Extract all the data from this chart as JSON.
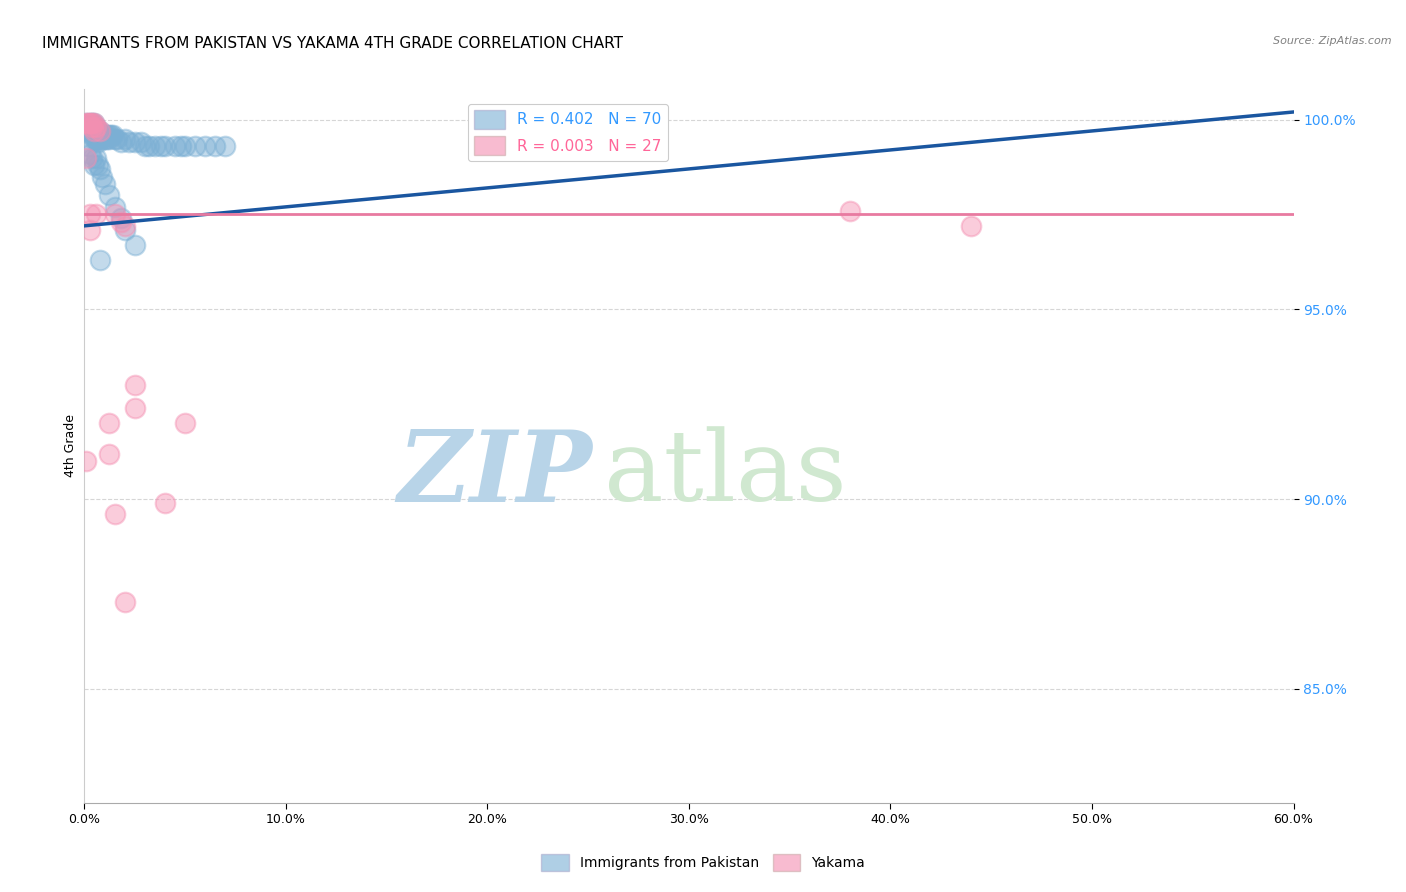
{
  "title": "IMMIGRANTS FROM PAKISTAN VS YAKAMA 4TH GRADE CORRELATION CHART",
  "source": "Source: ZipAtlas.com",
  "ylabel": "4th Grade",
  "xlim": [
    0.0,
    0.6
  ],
  "ylim": [
    0.82,
    1.008
  ],
  "xtick_labels": [
    "0.0%",
    "10.0%",
    "20.0%",
    "30.0%",
    "40.0%",
    "50.0%",
    "60.0%"
  ],
  "xtick_values": [
    0.0,
    0.1,
    0.2,
    0.3,
    0.4,
    0.5,
    0.6
  ],
  "ytick_labels": [
    "85.0%",
    "90.0%",
    "95.0%",
    "100.0%"
  ],
  "ytick_values": [
    0.85,
    0.9,
    0.95,
    1.0
  ],
  "watermark_zip": "ZIP",
  "watermark_atlas": "atlas",
  "blue_color": "#7bafd4",
  "pink_color": "#f48fb1",
  "blue_line_color": "#1a56a0",
  "pink_line_color": "#e87aa0",
  "scatter_blue": [
    [
      0.001,
      0.999
    ],
    [
      0.002,
      0.998
    ],
    [
      0.002,
      0.997
    ],
    [
      0.003,
      0.999
    ],
    [
      0.003,
      0.998
    ],
    [
      0.003,
      0.997
    ],
    [
      0.004,
      0.999
    ],
    [
      0.004,
      0.998
    ],
    [
      0.004,
      0.997
    ],
    [
      0.004,
      0.996
    ],
    [
      0.005,
      0.999
    ],
    [
      0.005,
      0.998
    ],
    [
      0.005,
      0.997
    ],
    [
      0.005,
      0.996
    ],
    [
      0.005,
      0.995
    ],
    [
      0.006,
      0.998
    ],
    [
      0.006,
      0.997
    ],
    [
      0.006,
      0.996
    ],
    [
      0.006,
      0.995
    ],
    [
      0.007,
      0.997
    ],
    [
      0.007,
      0.996
    ],
    [
      0.007,
      0.995
    ],
    [
      0.007,
      0.994
    ],
    [
      0.008,
      0.997
    ],
    [
      0.008,
      0.996
    ],
    [
      0.008,
      0.995
    ],
    [
      0.009,
      0.996
    ],
    [
      0.009,
      0.995
    ],
    [
      0.01,
      0.996
    ],
    [
      0.01,
      0.995
    ],
    [
      0.011,
      0.996
    ],
    [
      0.011,
      0.995
    ],
    [
      0.012,
      0.996
    ],
    [
      0.012,
      0.995
    ],
    [
      0.013,
      0.996
    ],
    [
      0.014,
      0.996
    ],
    [
      0.015,
      0.995
    ],
    [
      0.016,
      0.995
    ],
    [
      0.018,
      0.994
    ],
    [
      0.02,
      0.995
    ],
    [
      0.022,
      0.994
    ],
    [
      0.025,
      0.994
    ],
    [
      0.028,
      0.994
    ],
    [
      0.03,
      0.993
    ],
    [
      0.032,
      0.993
    ],
    [
      0.035,
      0.993
    ],
    [
      0.038,
      0.993
    ],
    [
      0.04,
      0.993
    ],
    [
      0.045,
      0.993
    ],
    [
      0.048,
      0.993
    ],
    [
      0.05,
      0.993
    ],
    [
      0.055,
      0.993
    ],
    [
      0.06,
      0.993
    ],
    [
      0.065,
      0.993
    ],
    [
      0.07,
      0.993
    ],
    [
      0.002,
      0.993
    ],
    [
      0.003,
      0.991
    ],
    [
      0.004,
      0.99
    ],
    [
      0.005,
      0.988
    ],
    [
      0.006,
      0.99
    ],
    [
      0.007,
      0.988
    ],
    [
      0.008,
      0.987
    ],
    [
      0.009,
      0.985
    ],
    [
      0.01,
      0.983
    ],
    [
      0.012,
      0.98
    ],
    [
      0.015,
      0.977
    ],
    [
      0.018,
      0.974
    ],
    [
      0.02,
      0.971
    ],
    [
      0.025,
      0.967
    ],
    [
      0.008,
      0.963
    ]
  ],
  "scatter_pink": [
    [
      0.001,
      0.999
    ],
    [
      0.002,
      0.999
    ],
    [
      0.003,
      0.999
    ],
    [
      0.004,
      0.999
    ],
    [
      0.004,
      0.998
    ],
    [
      0.005,
      0.999
    ],
    [
      0.005,
      0.997
    ],
    [
      0.006,
      0.998
    ],
    [
      0.008,
      0.997
    ],
    [
      0.001,
      0.99
    ],
    [
      0.003,
      0.975
    ],
    [
      0.003,
      0.971
    ],
    [
      0.006,
      0.975
    ],
    [
      0.015,
      0.975
    ],
    [
      0.018,
      0.973
    ],
    [
      0.02,
      0.972
    ],
    [
      0.38,
      0.976
    ],
    [
      0.44,
      0.972
    ],
    [
      0.001,
      0.91
    ],
    [
      0.025,
      0.93
    ],
    [
      0.025,
      0.924
    ],
    [
      0.012,
      0.92
    ],
    [
      0.012,
      0.912
    ],
    [
      0.05,
      0.92
    ],
    [
      0.015,
      0.896
    ],
    [
      0.04,
      0.899
    ],
    [
      0.02,
      0.873
    ]
  ],
  "blue_trendline": [
    [
      0.0,
      0.972
    ],
    [
      0.6,
      1.002
    ]
  ],
  "pink_trendline": [
    [
      0.0,
      0.975
    ],
    [
      0.6,
      0.975
    ]
  ],
  "grid_color": "#cccccc",
  "background_color": "#ffffff",
  "title_fontsize": 11,
  "tick_fontsize": 9,
  "watermark_color_zip": "#b8d4e8",
  "watermark_color_atlas": "#d0e8d0",
  "watermark_fontsize": 72
}
